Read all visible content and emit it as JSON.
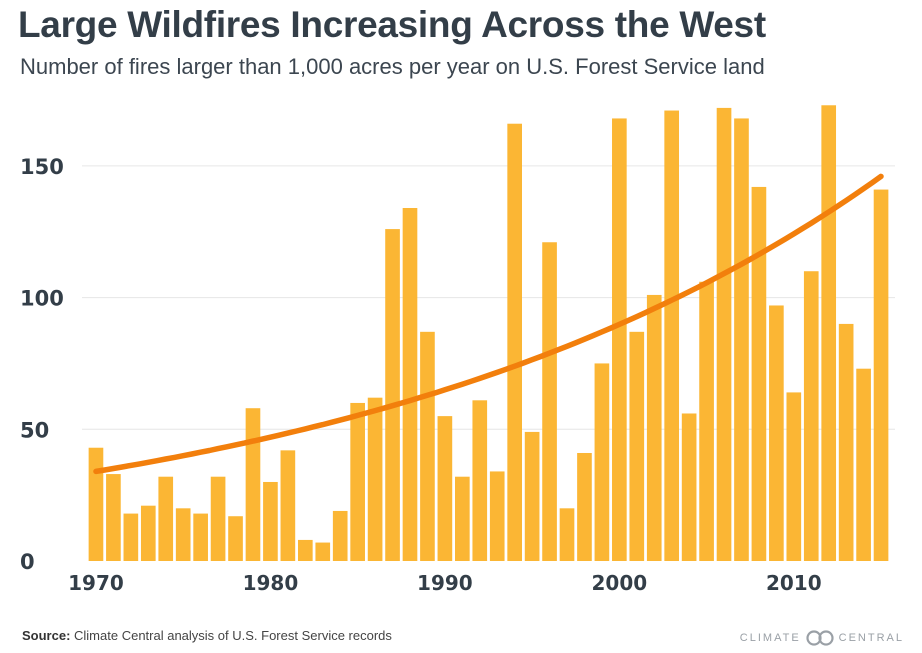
{
  "title": "Large Wildfires Increasing Across the West",
  "subtitle": "Number of fires larger than 1,000 acres per year on U.S. Forest Service land",
  "source_label": "Source:",
  "source_text": " Climate Central analysis of U.S. Forest Service records",
  "brand_left": "CLIMATE",
  "brand_right": "CENTRAL",
  "colors": {
    "bar": "#fbb634",
    "trend": "#f27f0c",
    "grid": "#e6e6e6",
    "text": "#333e48"
  },
  "chart_data": {
    "type": "bar",
    "x": [
      1970,
      1971,
      1972,
      1973,
      1974,
      1975,
      1976,
      1977,
      1978,
      1979,
      1980,
      1981,
      1982,
      1983,
      1984,
      1985,
      1986,
      1987,
      1988,
      1989,
      1990,
      1991,
      1992,
      1993,
      1994,
      1995,
      1996,
      1997,
      1998,
      1999,
      2000,
      2001,
      2002,
      2003,
      2004,
      2005,
      2006,
      2007,
      2008,
      2009,
      2010,
      2011,
      2012,
      2013,
      2014,
      2015
    ],
    "values": [
      43,
      33,
      18,
      21,
      32,
      20,
      18,
      32,
      17,
      58,
      30,
      42,
      8,
      7,
      19,
      60,
      62,
      126,
      134,
      87,
      55,
      32,
      61,
      34,
      166,
      49,
      121,
      20,
      41,
      75,
      168,
      87,
      101,
      171,
      56,
      106,
      172,
      168,
      142,
      97,
      64,
      110,
      173,
      90,
      73,
      141
    ],
    "trend": {
      "type": "exponential",
      "start": [
        1970,
        34
      ],
      "end": [
        2015,
        146
      ]
    },
    "xticks": [
      1970,
      1980,
      1990,
      2000,
      2010
    ],
    "yticks": [
      0,
      50,
      100,
      150
    ],
    "ylim": [
      0,
      175
    ],
    "xlim": [
      1969.2,
      2015.8
    ],
    "grid": true,
    "legend": "none"
  }
}
